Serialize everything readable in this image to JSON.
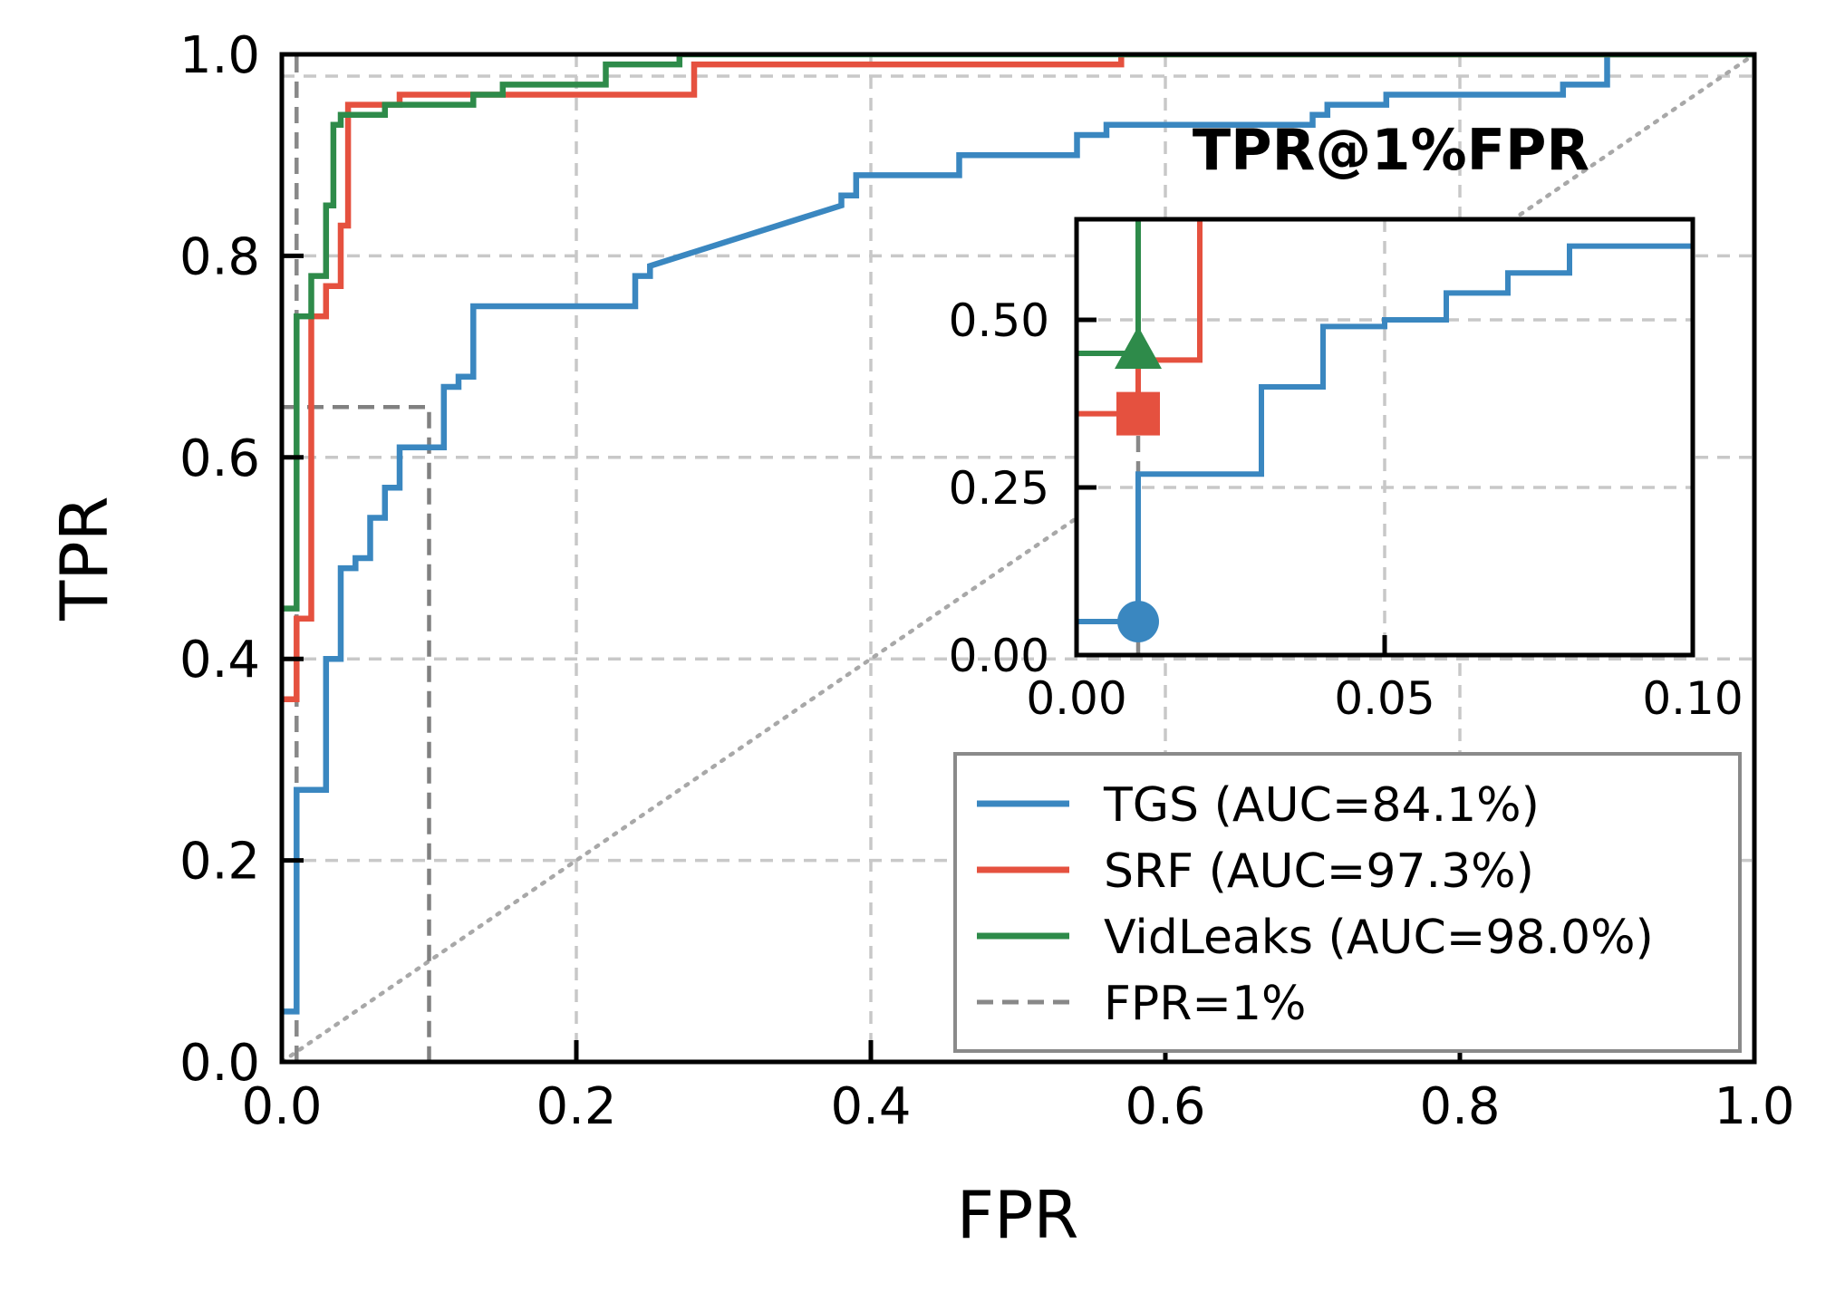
{
  "chart_data": {
    "type": "line",
    "title": "",
    "xlabel": "FPR",
    "ylabel": "TPR",
    "xlim": [
      0,
      1
    ],
    "ylim": [
      0,
      1
    ],
    "xticks": [
      "0.0",
      "0.2",
      "0.4",
      "0.6",
      "0.8",
      "1.0"
    ],
    "yticks": [
      "0.0",
      "0.2",
      "0.4",
      "0.6",
      "0.8",
      "1.0"
    ],
    "grid": true,
    "legend_position": "lower-right",
    "series": [
      {
        "name": "TGS (AUC=84.1%)",
        "color": "#3a87c0",
        "points": [
          [
            0.0,
            0.05
          ],
          [
            0.01,
            0.05
          ],
          [
            0.01,
            0.27
          ],
          [
            0.03,
            0.27
          ],
          [
            0.03,
            0.4
          ],
          [
            0.04,
            0.4
          ],
          [
            0.04,
            0.49
          ],
          [
            0.05,
            0.49
          ],
          [
            0.05,
            0.5
          ],
          [
            0.06,
            0.5
          ],
          [
            0.06,
            0.54
          ],
          [
            0.07,
            0.54
          ],
          [
            0.07,
            0.57
          ],
          [
            0.08,
            0.57
          ],
          [
            0.08,
            0.61
          ],
          [
            0.11,
            0.61
          ],
          [
            0.11,
            0.67
          ],
          [
            0.12,
            0.67
          ],
          [
            0.12,
            0.68
          ],
          [
            0.13,
            0.68
          ],
          [
            0.13,
            0.75
          ],
          [
            0.24,
            0.75
          ],
          [
            0.24,
            0.78
          ],
          [
            0.25,
            0.78
          ],
          [
            0.25,
            0.79
          ],
          [
            0.38,
            0.85
          ],
          [
            0.38,
            0.86
          ],
          [
            0.39,
            0.86
          ],
          [
            0.39,
            0.88
          ],
          [
            0.46,
            0.88
          ],
          [
            0.46,
            0.9
          ],
          [
            0.54,
            0.9
          ],
          [
            0.54,
            0.92
          ],
          [
            0.56,
            0.92
          ],
          [
            0.56,
            0.93
          ],
          [
            0.7,
            0.93
          ],
          [
            0.7,
            0.94
          ],
          [
            0.71,
            0.94
          ],
          [
            0.71,
            0.95
          ],
          [
            0.75,
            0.95
          ],
          [
            0.75,
            0.96
          ],
          [
            0.87,
            0.96
          ],
          [
            0.87,
            0.97
          ],
          [
            0.9,
            0.97
          ],
          [
            0.9,
            1.0
          ],
          [
            1.0,
            1.0
          ]
        ]
      },
      {
        "name": "SRF (AUC=97.3%)",
        "color": "#e5513f",
        "points": [
          [
            0.0,
            0.36
          ],
          [
            0.01,
            0.36
          ],
          [
            0.01,
            0.44
          ],
          [
            0.02,
            0.44
          ],
          [
            0.02,
            0.74
          ],
          [
            0.03,
            0.74
          ],
          [
            0.03,
            0.77
          ],
          [
            0.04,
            0.77
          ],
          [
            0.04,
            0.83
          ],
          [
            0.045,
            0.83
          ],
          [
            0.045,
            0.95
          ],
          [
            0.08,
            0.95
          ],
          [
            0.08,
            0.96
          ],
          [
            0.28,
            0.96
          ],
          [
            0.28,
            0.99
          ],
          [
            0.57,
            0.99
          ],
          [
            0.57,
            1.0
          ],
          [
            1.0,
            1.0
          ]
        ]
      },
      {
        "name": "VidLeaks (AUC=98.0%)",
        "color": "#2e8b4a",
        "points": [
          [
            0.0,
            0.45
          ],
          [
            0.01,
            0.45
          ],
          [
            0.01,
            0.74
          ],
          [
            0.02,
            0.74
          ],
          [
            0.02,
            0.78
          ],
          [
            0.03,
            0.78
          ],
          [
            0.03,
            0.85
          ],
          [
            0.035,
            0.85
          ],
          [
            0.035,
            0.93
          ],
          [
            0.04,
            0.93
          ],
          [
            0.04,
            0.94
          ],
          [
            0.07,
            0.94
          ],
          [
            0.07,
            0.95
          ],
          [
            0.13,
            0.95
          ],
          [
            0.13,
            0.96
          ],
          [
            0.15,
            0.96
          ],
          [
            0.15,
            0.97
          ],
          [
            0.22,
            0.97
          ],
          [
            0.22,
            0.99
          ],
          [
            0.27,
            0.99
          ],
          [
            0.27,
            1.0
          ],
          [
            1.0,
            1.0
          ]
        ]
      },
      {
        "name": "FPR=1%",
        "color": "#888888",
        "dashed": true,
        "points": [
          [
            0.01,
            0.0
          ],
          [
            0.01,
            1.0
          ]
        ]
      }
    ],
    "diagonal_reference": [
      [
        0,
        0
      ],
      [
        1,
        1
      ]
    ],
    "zoom_box": {
      "x": [
        0,
        0.1
      ],
      "y": [
        0,
        0.65
      ]
    },
    "inset": {
      "title": "TPR@1%FPR",
      "xlim": [
        0,
        0.1
      ],
      "ylim": [
        0,
        0.65
      ],
      "xticks": [
        "0.00",
        "0.05",
        "0.10"
      ],
      "yticks": [
        "0.00",
        "0.25",
        "0.50"
      ],
      "markers": [
        {
          "series": "TGS (AUC=84.1%)",
          "x": 0.01,
          "y": 0.05,
          "shape": "circle"
        },
        {
          "series": "SRF (AUC=97.3%)",
          "x": 0.01,
          "y": 0.36,
          "shape": "square"
        },
        {
          "series": "VidLeaks (AUC=98.0%)",
          "x": 0.01,
          "y": 0.45,
          "shape": "triangle"
        }
      ]
    }
  }
}
